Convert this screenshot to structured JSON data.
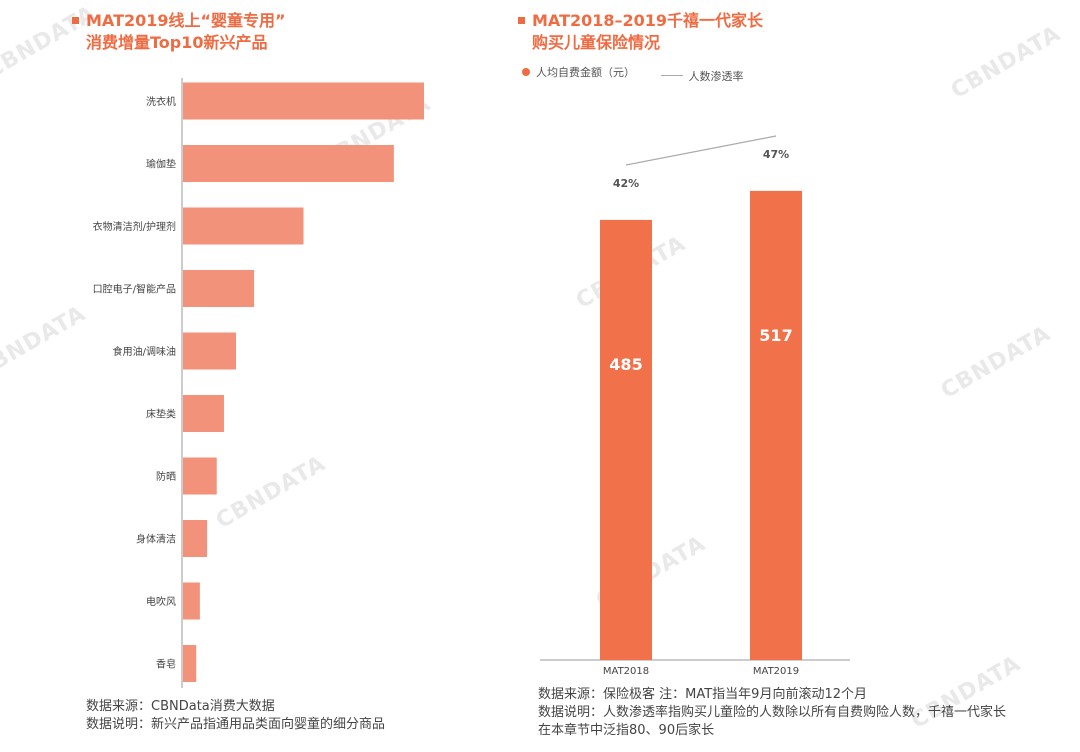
{
  "watermark": "CBNDATA",
  "colors": {
    "accent": "#ef6c43",
    "bar_light": "#f3927a",
    "bar_dark": "#f0714a",
    "trend_line": "#aaaaaa"
  },
  "left": {
    "title_line1": "MAT2019线上“婴童专用”",
    "title_line2": "消费增量Top10新兴产品",
    "footer_line1": "数据来源：CBNData消费大数据",
    "footer_line2": "数据说明：新兴产品指通用品类面向婴童的细分商品"
  },
  "right": {
    "title_line1": "MAT2018–2019千禧一代家长",
    "title_line2": "购买儿童保险情况",
    "legend_bar": "人均自费金额（元）",
    "legend_line": "人数渗透率",
    "footer_line1": "数据来源：保险极客 注：MAT指当年9月向前滚动12个月",
    "footer_line2": "数据说明：人数渗透率指购买儿童险的人数除以所有自费购险人数，千禧一代家长",
    "footer_line3": "在本章节中泛指80、90后家长"
  },
  "chart_data": [
    {
      "type": "bar",
      "orientation": "horizontal",
      "title": "MAT2019线上“婴童专用”消费增量Top10新兴产品",
      "categories": [
        "洗衣机",
        "瑜伽垫",
        "衣物清洁剂/护理剂",
        "口腔电子/智能产品",
        "食用油/调味油",
        "床垫类",
        "防晒",
        "身体清洁",
        "电吹风",
        "香皂"
      ],
      "values": [
        100,
        87.5,
        50,
        29.5,
        22,
        17,
        14,
        10,
        7,
        5.5
      ],
      "value_note": "relative increment (index, largest = 100); no numeric labels shown",
      "xlim": [
        0,
        100
      ],
      "grid": false
    },
    {
      "type": "bar",
      "title": "MAT2018–2019千禧一代家长购买儿童保险情况",
      "categories": [
        "MAT2018",
        "MAT2019"
      ],
      "series": [
        {
          "name": "人均自费金额（元）",
          "type": "bar",
          "values": [
            485,
            517
          ],
          "labels": [
            "485",
            "517"
          ]
        },
        {
          "name": "人数渗透率",
          "type": "line",
          "values": [
            42,
            47
          ],
          "labels": [
            "42%",
            "47%"
          ]
        }
      ],
      "ylim": [
        0,
        540
      ],
      "grid": false,
      "legend": "top-left"
    }
  ]
}
